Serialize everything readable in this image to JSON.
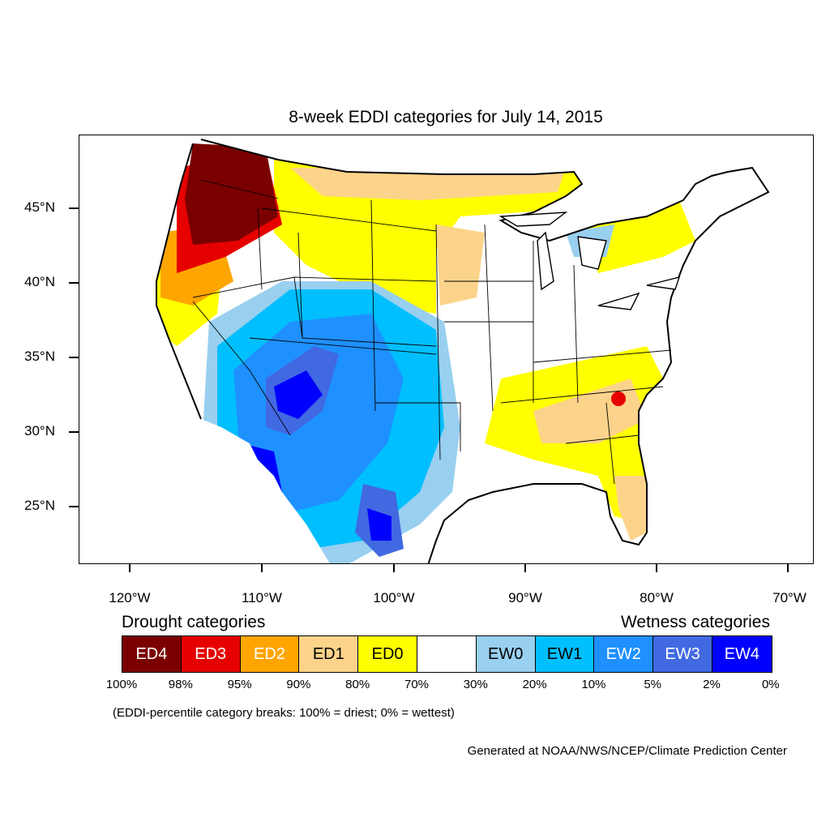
{
  "title": "8-week EDDI categories for July 14, 2015",
  "lat_labels": [
    "45°N",
    "40°N",
    "35°N",
    "30°N",
    "25°N"
  ],
  "lon_labels": [
    "120°W",
    "110°W",
    "100°W",
    "90°W",
    "80°W",
    "70°W"
  ],
  "legend": {
    "drought_heading": "Drought categories",
    "wetness_heading": "Wetness categories",
    "categories": [
      {
        "label": "ED4",
        "color": "#7a0000",
        "text_color": "#ffffff"
      },
      {
        "label": "ED3",
        "color": "#e60000",
        "text_color": "#ffffff"
      },
      {
        "label": "ED2",
        "color": "#ffa500",
        "text_color": "#ffffff"
      },
      {
        "label": "ED1",
        "color": "#fcd38a",
        "text_color": "#000000"
      },
      {
        "label": "ED0",
        "color": "#ffff00",
        "text_color": "#000000"
      },
      {
        "label": "",
        "color": "#ffffff",
        "text_color": "#000000"
      },
      {
        "label": "EW0",
        "color": "#99cfef",
        "text_color": "#000000"
      },
      {
        "label": "EW1",
        "color": "#00bfff",
        "text_color": "#000000"
      },
      {
        "label": "EW2",
        "color": "#1e90ff",
        "text_color": "#ffffff"
      },
      {
        "label": "EW3",
        "color": "#4169e1",
        "text_color": "#ffffff"
      },
      {
        "label": "EW4",
        "color": "#0000ff",
        "text_color": "#ffffff"
      }
    ],
    "breaks": [
      "100%",
      "98%",
      "95%",
      "90%",
      "80%",
      "70%",
      "30%",
      "20%",
      "10%",
      "5%",
      "2%",
      "0%"
    ],
    "note": "(EDDI-percentile category breaks: 100% = driest; 0% = wettest)"
  },
  "credit": "Generated at NOAA/NWS/NCEP/Climate Prediction Center"
}
